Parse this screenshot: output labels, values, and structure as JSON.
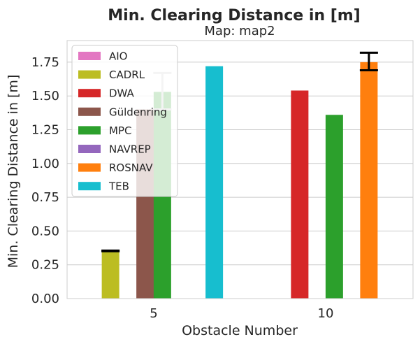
{
  "chart_data": {
    "type": "bar",
    "title": "Min. Clearing Distance in [m]",
    "subtitle": "Map: map2",
    "xlabel": "Obstacle Number",
    "ylabel": "Min. Clearing Distance in [m]",
    "categories": [
      "5",
      "10"
    ],
    "ylim": [
      0,
      1.91
    ],
    "yticks": [
      "0.00",
      "0.25",
      "0.50",
      "0.75",
      "1.00",
      "1.25",
      "1.50",
      "1.75"
    ],
    "ytick_values": [
      0,
      0.25,
      0.5,
      0.75,
      1.0,
      1.25,
      1.5,
      1.75
    ],
    "grid": true,
    "legend_position": "upper-left",
    "series": [
      {
        "name": "AIO",
        "color": "#e377c2",
        "values": [
          null,
          null
        ],
        "err": [
          null,
          null
        ]
      },
      {
        "name": "CADRL",
        "color": "#bcbd22",
        "values": [
          0.35,
          null
        ],
        "err": [
          [
            0.35,
            0.355
          ],
          null
        ]
      },
      {
        "name": "DWA",
        "color": "#d62728",
        "values": [
          null,
          1.54
        ],
        "err": [
          null,
          null
        ]
      },
      {
        "name": "Güldenring",
        "color": "#8c564b",
        "values": [
          1.4,
          null
        ],
        "err": [
          null,
          null
        ]
      },
      {
        "name": "MPC",
        "color": "#2ca02c",
        "values": [
          1.53,
          1.36
        ],
        "err": [
          [
            1.4,
            1.67
          ],
          null
        ]
      },
      {
        "name": "NAVREP",
        "color": "#9467bd",
        "values": [
          null,
          null
        ],
        "err": [
          null,
          null
        ]
      },
      {
        "name": "ROSNAV",
        "color": "#ff7f0e",
        "values": [
          null,
          1.75
        ],
        "err": [
          null,
          [
            1.69,
            1.82
          ]
        ]
      },
      {
        "name": "TEB",
        "color": "#17becf",
        "values": [
          1.72,
          null
        ],
        "err": [
          null,
          null
        ]
      }
    ]
  }
}
